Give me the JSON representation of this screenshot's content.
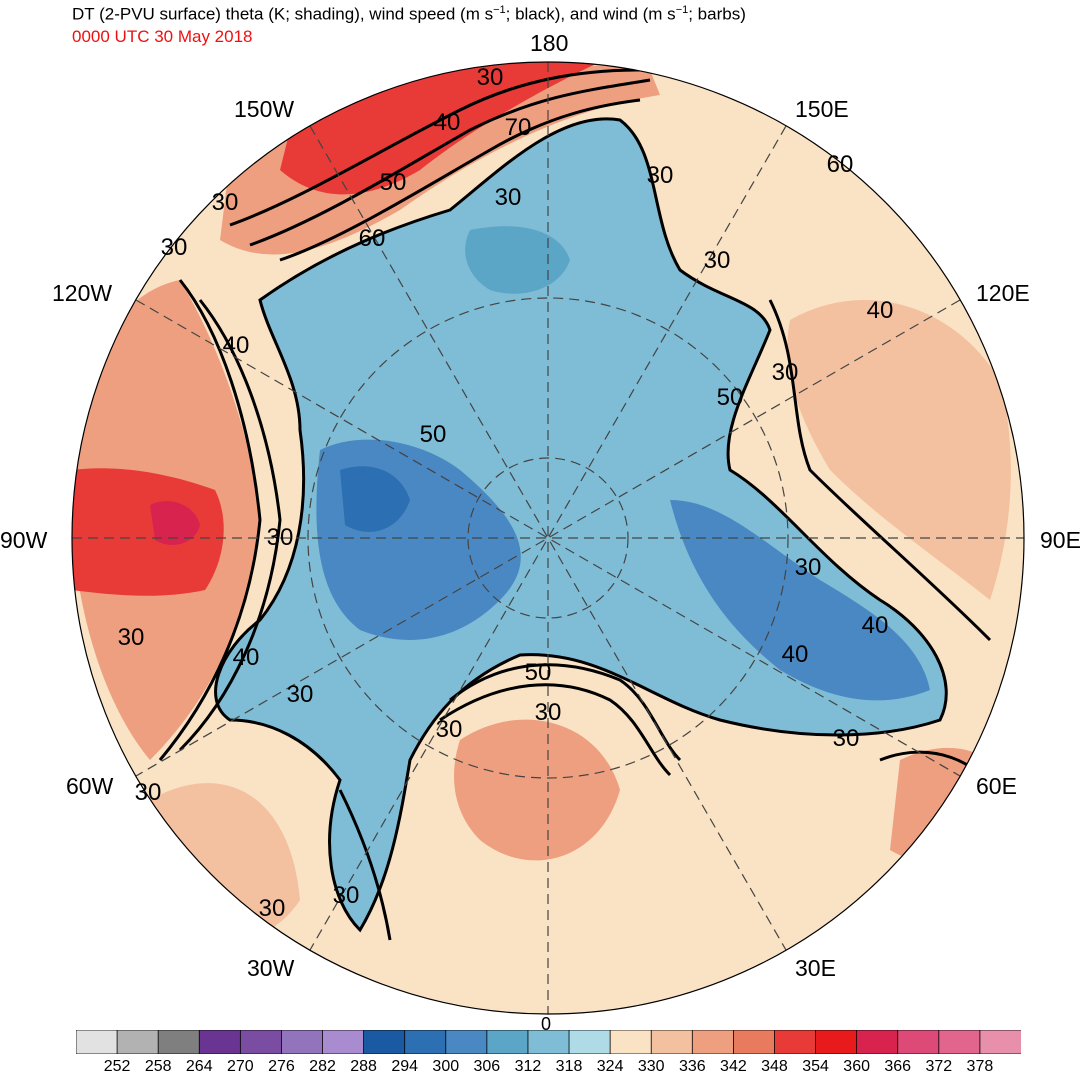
{
  "header": {
    "title_a": "DT (2-PVU surface) theta (K; shading), wind speed (m s",
    "title_b": "; black), and wind (m s",
    "title_c": "; barbs)",
    "exponent": "−1",
    "valid_time": "0000 UTC 30 May 2018"
  },
  "map": {
    "projection": "north-polar-stereographic",
    "longitude_labels": [
      "180",
      "150E",
      "120E",
      "90E",
      "60E",
      "30E",
      "0",
      "30W",
      "60W",
      "90W",
      "120W",
      "150W"
    ],
    "contour_labels": [
      "30",
      "40",
      "70",
      "50",
      "60",
      "30",
      "30",
      "30",
      "30",
      "40",
      "30",
      "40",
      "30",
      "50",
      "50",
      "30",
      "60",
      "40",
      "30",
      "30",
      "40",
      "50",
      "30",
      "30",
      "40",
      "30",
      "30",
      "30",
      "30",
      "30"
    ],
    "colors": {
      "land_border": "#3a3a3a",
      "contour": "#000000",
      "graticule": "#444444"
    }
  },
  "colorbar": {
    "tick_labels": [
      "252",
      "258",
      "264",
      "270",
      "276",
      "282",
      "288",
      "294",
      "300",
      "306",
      "312",
      "318",
      "324",
      "330",
      "336",
      "342",
      "348",
      "354",
      "360",
      "366",
      "372",
      "378"
    ],
    "colors": [
      "#e2e2e2",
      "#b2b2b2",
      "#7f7f7f",
      "#6a3592",
      "#7b4da2",
      "#9174bc",
      "#a98bd0",
      "#1a5aa3",
      "#2c6fb2",
      "#4a88c3",
      "#5ba5c6",
      "#7fbdd6",
      "#aedbe5",
      "#fae2c4",
      "#f4c1a0",
      "#ee9f80",
      "#e87a5e",
      "#e83a36",
      "#e81a1c",
      "#d8234f",
      "#de4a78",
      "#e2658d",
      "#e88fac"
    ]
  }
}
